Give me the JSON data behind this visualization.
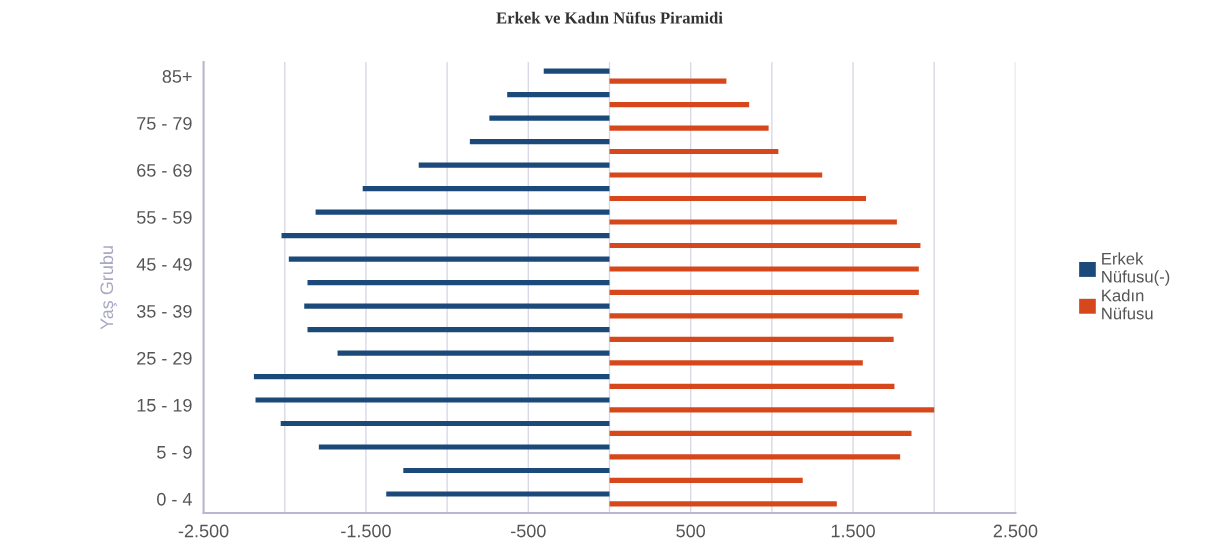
{
  "chart_data": {
    "type": "bar",
    "orientation": "horizontal",
    "title": "Erkek ve Kadın Nüfus Piramidi",
    "ylabel": "Yaş Grubu",
    "categories": [
      "85+",
      null,
      "75 - 79",
      null,
      "65 - 69",
      null,
      "55 - 59",
      null,
      "45 - 49",
      null,
      "35 - 39",
      null,
      "25 - 29",
      null,
      "15 - 19",
      null,
      "5 - 9",
      null,
      "0 - 4"
    ],
    "series": [
      {
        "name": "Erkek\nNüfusu(-)",
        "color": "#1b4a7a",
        "values": [
          -405,
          -630,
          -740,
          -860,
          -1175,
          -1520,
          -1810,
          -2020,
          -1975,
          -1860,
          -1880,
          -1860,
          -1675,
          -2190,
          -2180,
          -2025,
          -1790,
          -1270,
          -1375
        ]
      },
      {
        "name": "Kadın\nNüfusu",
        "color": "#d6481c",
        "values": [
          720,
          860,
          980,
          1040,
          1310,
          1580,
          1770,
          1915,
          1905,
          1905,
          1805,
          1750,
          1560,
          1755,
          2000,
          1860,
          1790,
          1190,
          1400
        ]
      }
    ],
    "xlim": [
      -2500,
      2500
    ],
    "xticks": [
      {
        "value": -2500,
        "label": "-2.500"
      },
      {
        "value": -2000,
        "label": null
      },
      {
        "value": -1500,
        "label": "-1.500"
      },
      {
        "value": -1000,
        "label": null
      },
      -500,
      {
        "value": 0,
        "label": null
      },
      500,
      {
        "value": 1000,
        "label": null
      },
      {
        "value": 1500,
        "label": "1.500"
      },
      {
        "value": 2000,
        "label": null
      },
      {
        "value": 2500,
        "label": "2.500"
      }
    ],
    "grid": "x",
    "legend": "right"
  }
}
